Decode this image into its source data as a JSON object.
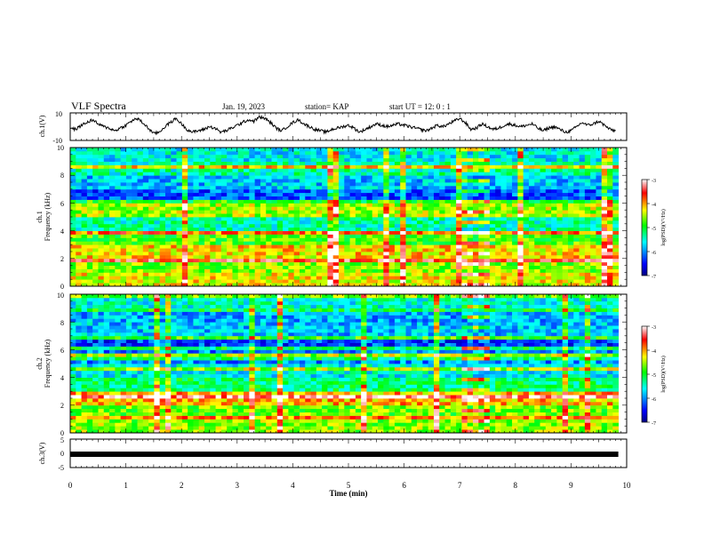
{
  "header": {
    "title": "VLF Spectra",
    "date": "Jan. 19, 2023",
    "station": "station= KAP",
    "start": "start  UT =  12: 0  : 1"
  },
  "chart_data": [
    {
      "type": "line",
      "panel": "ch1-waveform",
      "ylabel": "ch.1(V)",
      "ylim": [
        -10,
        10
      ],
      "yticks": [
        "10",
        "-10"
      ],
      "x_range_min": [
        0,
        10
      ],
      "line_color": "#000000",
      "note_values": "approximate envelope of the ch.1 voltage trace (V) at 0.1 min steps",
      "x": [
        0,
        0.1,
        0.2,
        0.3,
        0.4,
        0.5,
        0.6,
        0.7,
        0.8,
        0.9,
        1.0,
        1.1,
        1.2,
        1.3,
        1.4,
        1.5,
        1.6,
        1.7,
        1.8,
        1.9,
        2.0,
        2.1,
        2.2,
        2.3,
        2.4,
        2.5,
        2.6,
        2.7,
        2.8,
        2.9,
        3.0,
        3.1,
        3.2,
        3.3,
        3.4,
        3.5,
        3.6,
        3.7,
        3.8,
        3.9,
        4.0,
        4.1,
        4.2,
        4.3,
        4.4,
        4.5,
        4.6,
        4.7,
        4.8,
        4.9,
        5.0,
        5.1,
        5.2,
        5.3,
        5.4,
        5.5,
        5.6,
        5.7,
        5.8,
        5.9,
        6.0,
        6.1,
        6.2,
        6.3,
        6.4,
        6.5,
        6.6,
        6.7,
        6.8,
        6.9,
        7.0,
        7.1,
        7.2,
        7.3,
        7.4,
        7.5,
        7.6,
        7.7,
        7.8,
        7.9,
        8.0,
        8.1,
        8.2,
        8.3,
        8.4,
        8.5,
        8.6,
        8.7,
        8.8,
        8.9,
        9.0,
        9.1,
        9.2,
        9.3,
        9.4,
        9.5,
        9.6,
        9.7,
        9.8
      ],
      "values": [
        -1,
        -2,
        1,
        3,
        5,
        2,
        0,
        -1,
        -3,
        -1,
        1,
        4,
        6,
        3,
        -1,
        -5,
        -4,
        0,
        3,
        6,
        2,
        -2,
        -4,
        -3,
        -2,
        0,
        -1,
        -4,
        -3,
        -1,
        1,
        3,
        5,
        4,
        7,
        6,
        3,
        -1,
        -3,
        0,
        3,
        5,
        2,
        0,
        -2,
        -3,
        -4,
        -2,
        -1,
        0,
        1,
        -1,
        -4,
        -2,
        0,
        2,
        1,
        0,
        1,
        2,
        1,
        0,
        -1,
        -2,
        -3,
        -1,
        1,
        0,
        2,
        4,
        6,
        3,
        -2,
        -1,
        2,
        0,
        -2,
        -1,
        1,
        2,
        1,
        0,
        1,
        2,
        -1,
        -3,
        -1,
        0,
        -2,
        -4,
        -3,
        0,
        3,
        1,
        2,
        4,
        1,
        -2,
        -3
      ]
    },
    {
      "type": "heatmap",
      "panel": "ch1-spectrogram",
      "ylabel": "ch.1",
      "ylabel2": "Frequency (kHz)",
      "ylim": [
        0,
        10
      ],
      "yticks": [
        "0",
        "2",
        "4",
        "6",
        "8",
        "10"
      ],
      "x_range_min": [
        0,
        10
      ],
      "data_end_min": 9.85,
      "z_label": "log(PSD)(V²/Hz)",
      "z_range": [
        -7,
        -3
      ],
      "z_ticks": [
        "-3",
        "-4",
        "-5",
        "-6",
        "-7"
      ],
      "colormap": [
        "#ffffff",
        "#ff0000",
        "#ffff00",
        "#00ff00",
        "#00ffff",
        "#0000ff",
        "#000080"
      ],
      "note_values": "approximate mean log PSD per 1 kHz band, 0-1 ... 9-10 kHz",
      "band_levels": [
        -4.3,
        -4.6,
        -4.2,
        -4.8,
        -5.4,
        -4.5,
        -6.2,
        -5.8,
        -5.4,
        -5.6
      ],
      "burst_window_min": [
        7.0,
        7.5
      ]
    },
    {
      "type": "heatmap",
      "panel": "ch2-spectrogram",
      "ylabel": "ch.2",
      "ylabel2": "Frequency (kHz)",
      "ylim": [
        0,
        10
      ],
      "yticks": [
        "0",
        "2",
        "4",
        "6",
        "8",
        "10"
      ],
      "x_range_min": [
        0,
        10
      ],
      "data_end_min": 9.85,
      "z_label": "log(PSD)(V²/Hz)",
      "z_range": [
        -7,
        -3
      ],
      "z_ticks": [
        "-3",
        "-4",
        "-5",
        "-6",
        "-7"
      ],
      "colormap": [
        "#ffffff",
        "#ff0000",
        "#ffff00",
        "#00ff00",
        "#00ffff",
        "#0000ff",
        "#000080"
      ],
      "note_values": "approximate mean log PSD per 1 kHz band, 0-1 ... 9-10 kHz",
      "band_levels": [
        -4.6,
        -4.7,
        -4.1,
        -5.2,
        -5.6,
        -6.0,
        -6.3,
        -5.8,
        -5.9,
        -5.5
      ],
      "burst_window_min": [
        7.0,
        7.5
      ]
    },
    {
      "type": "line",
      "panel": "ch3-waveform",
      "ylabel": "ch.3(V)",
      "ylim": [
        -5,
        5
      ],
      "yticks": [
        "5",
        "0",
        "-5"
      ],
      "x_range_min": [
        0,
        10
      ],
      "xlabel": "Time  (min)",
      "xticks": [
        "0",
        "1",
        "2",
        "3",
        "4",
        "5",
        "6",
        "7",
        "8",
        "9",
        "10"
      ],
      "line_color": "#000000",
      "note_values": "thick nearly flat trace around 0 V",
      "x": [
        0,
        9.85
      ],
      "values": [
        0,
        0
      ]
    }
  ]
}
